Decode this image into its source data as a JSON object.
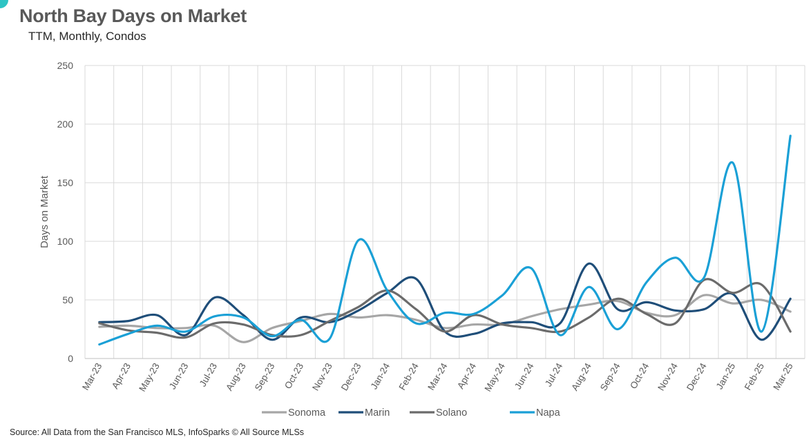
{
  "header": {
    "title": "North Bay Days on Market",
    "subtitle": "TTM, Monthly, Condos"
  },
  "footer": {
    "source": "Source: All Data from the San Francisco MLS, InfoSparks © All Source MLSs"
  },
  "chart_data": {
    "type": "line",
    "ylabel": "Days on Market",
    "ylim": [
      0,
      250
    ],
    "yticks": [
      0,
      50,
      100,
      150,
      200,
      250
    ],
    "grid": "horizontal and vertical",
    "legend": "bottom",
    "categories": [
      "Mar-23",
      "Apr-23",
      "May-23",
      "Jun-23",
      "Jul-23",
      "Aug-23",
      "Sep-23",
      "Oct-23",
      "Nov-23",
      "Dec-23",
      "Jan-24",
      "Feb-24",
      "Mar-24",
      "Apr-24",
      "May-24",
      "Jun-24",
      "Jul-24",
      "Aug-24",
      "Sep-24",
      "Oct-24",
      "Nov-24",
      "Dec-24",
      "Jan-25",
      "Feb-25",
      "Mar-25"
    ],
    "series": [
      {
        "name": "Sonoma",
        "color": "#a6a6a6",
        "values": [
          27,
          28,
          26,
          26,
          28,
          14,
          26,
          32,
          38,
          35,
          37,
          33,
          26,
          29,
          29,
          36,
          42,
          46,
          49,
          39,
          37,
          54,
          47,
          50,
          40
        ]
      },
      {
        "name": "Marin",
        "color": "#1f4e79",
        "values": [
          31,
          32,
          37,
          20,
          52,
          37,
          16,
          35,
          31,
          41,
          56,
          68,
          23,
          21,
          30,
          31,
          30,
          81,
          42,
          48,
          41,
          42,
          55,
          16,
          51
        ]
      },
      {
        "name": "Solano",
        "color": "#6b6b6b",
        "values": [
          30,
          24,
          22,
          18,
          30,
          29,
          20,
          20,
          32,
          44,
          58,
          42,
          23,
          37,
          29,
          26,
          23,
          35,
          51,
          38,
          30,
          67,
          56,
          63,
          23
        ]
      },
      {
        "name": "Napa",
        "color": "#1aa0d6",
        "values": [
          12,
          21,
          28,
          23,
          36,
          35,
          19,
          33,
          17,
          101,
          58,
          30,
          39,
          38,
          54,
          77,
          20,
          61,
          25,
          65,
          86,
          69,
          167,
          23,
          190
        ]
      }
    ]
  }
}
